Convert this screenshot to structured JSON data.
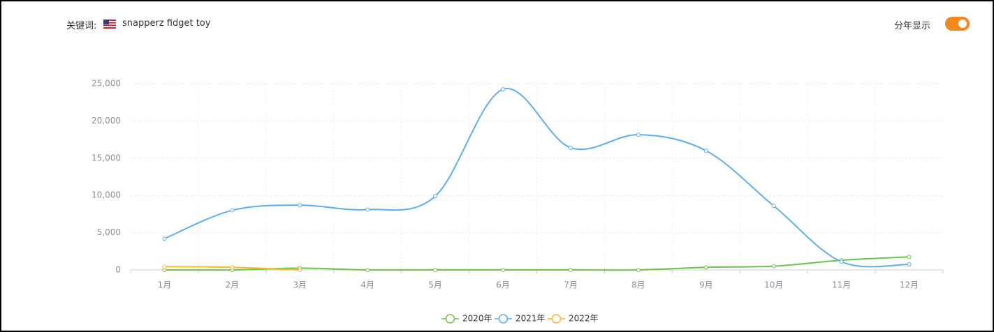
{
  "header": {
    "keyword_label": "关键词:",
    "keyword": "snapperz fidget toy",
    "toggle_label": "分年显示"
  },
  "chart_data": {
    "type": "line",
    "categories": [
      "1月",
      "2月",
      "3月",
      "4月",
      "5月",
      "6月",
      "7月",
      "8月",
      "9月",
      "10月",
      "11月",
      "12月"
    ],
    "series": [
      {
        "name": "2020年",
        "color": "#6cc24a",
        "values": [
          0,
          0,
          250,
          0,
          0,
          0,
          0,
          0,
          350,
          500,
          1300,
          1750
        ]
      },
      {
        "name": "2021年",
        "color": "#5aaef5",
        "values": [
          4200,
          8000,
          8700,
          8100,
          9900,
          24250,
          16400,
          18150,
          16000,
          8600,
          1100,
          750
        ]
      },
      {
        "name": "2022年",
        "color": "#f7b731",
        "values": [
          450,
          350,
          0,
          null,
          null,
          null,
          null,
          null,
          null,
          null,
          null,
          null
        ]
      }
    ],
    "ylim": [
      0,
      25000
    ],
    "yticks": [
      0,
      {
        "value": 5000,
        "label": "5,000"
      },
      {
        "value": 10000,
        "label": "10,000"
      },
      {
        "value": 15000,
        "label": "15,000"
      },
      {
        "value": 20000,
        "label": "20,000"
      },
      {
        "value": 25000,
        "label": "25,000"
      }
    ],
    "grid": true,
    "smooth": true,
    "legend": "bottom"
  }
}
